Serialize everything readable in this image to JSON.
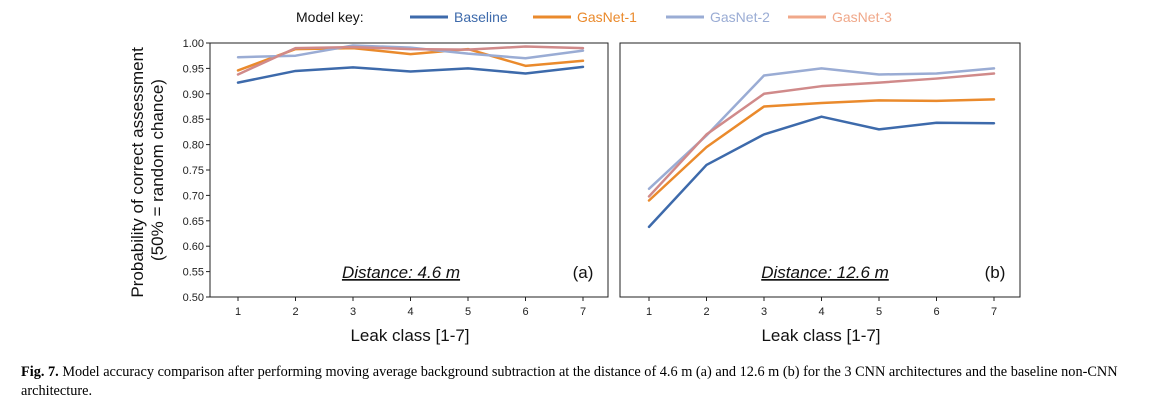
{
  "legend": {
    "title": "Model key:",
    "entries": [
      {
        "name": "Baseline",
        "color": "#3d6aab"
      },
      {
        "name": "GasNet-1",
        "color": "#ea8a2c"
      },
      {
        "name": "GasNet-2",
        "color": "#9aacd4"
      },
      {
        "name": "GasNet-3",
        "color": "#f0a88a"
      }
    ]
  },
  "caption": {
    "label": "Fig. 7.",
    "text": "Model accuracy comparison after performing moving average background subtraction at the distance of 4.6 m (a) and 12.6 m (b) for the 3 CNN architectures and the baseline non-CNN architecture."
  },
  "chart_data": [
    {
      "type": "line",
      "panel": "(a)",
      "annotation": "Distance: 4.6 m",
      "xlabel": "Leak class [1-7]",
      "ylabel": "Probability of correct assessment (50% = random chance)",
      "x": [
        1,
        2,
        3,
        4,
        5,
        6,
        7
      ],
      "ylim": [
        0.5,
        1.0
      ],
      "yticks": [
        "0.50",
        "0.55",
        "0.60",
        "0.65",
        "0.70",
        "0.75",
        "0.80",
        "0.85",
        "0.90",
        "0.95",
        "1.00"
      ],
      "grid": false,
      "series": [
        {
          "name": "Baseline",
          "color": "#3d6aab",
          "values": [
            0.922,
            0.945,
            0.952,
            0.944,
            0.95,
            0.94,
            0.953
          ]
        },
        {
          "name": "GasNet-1",
          "color": "#ea8a2c",
          "values": [
            0.946,
            0.988,
            0.99,
            0.978,
            0.988,
            0.955,
            0.965
          ]
        },
        {
          "name": "GasNet-2",
          "color": "#9aacd4",
          "values": [
            0.972,
            0.975,
            0.995,
            0.991,
            0.979,
            0.97,
            0.985
          ]
        },
        {
          "name": "GasNet-3",
          "color": "#d08a8a",
          "values": [
            0.938,
            0.99,
            0.992,
            0.988,
            0.987,
            0.993,
            0.99
          ]
        }
      ]
    },
    {
      "type": "line",
      "panel": "(b)",
      "annotation": "Distance: 12.6 m",
      "xlabel": "Leak class [1-7]",
      "ylabel": "",
      "x": [
        1,
        2,
        3,
        4,
        5,
        6,
        7
      ],
      "ylim": [
        0.5,
        1.0
      ],
      "grid": false,
      "series": [
        {
          "name": "Baseline",
          "color": "#3d6aab",
          "values": [
            0.638,
            0.76,
            0.82,
            0.855,
            0.83,
            0.843,
            0.842
          ]
        },
        {
          "name": "GasNet-1",
          "color": "#ea8a2c",
          "values": [
            0.69,
            0.795,
            0.875,
            0.882,
            0.887,
            0.886,
            0.889
          ]
        },
        {
          "name": "GasNet-2",
          "color": "#9aacd4",
          "values": [
            0.713,
            0.818,
            0.936,
            0.95,
            0.938,
            0.94,
            0.95
          ]
        },
        {
          "name": "GasNet-3",
          "color": "#d08a8a",
          "values": [
            0.698,
            0.82,
            0.9,
            0.915,
            0.922,
            0.93,
            0.94
          ]
        }
      ]
    }
  ]
}
